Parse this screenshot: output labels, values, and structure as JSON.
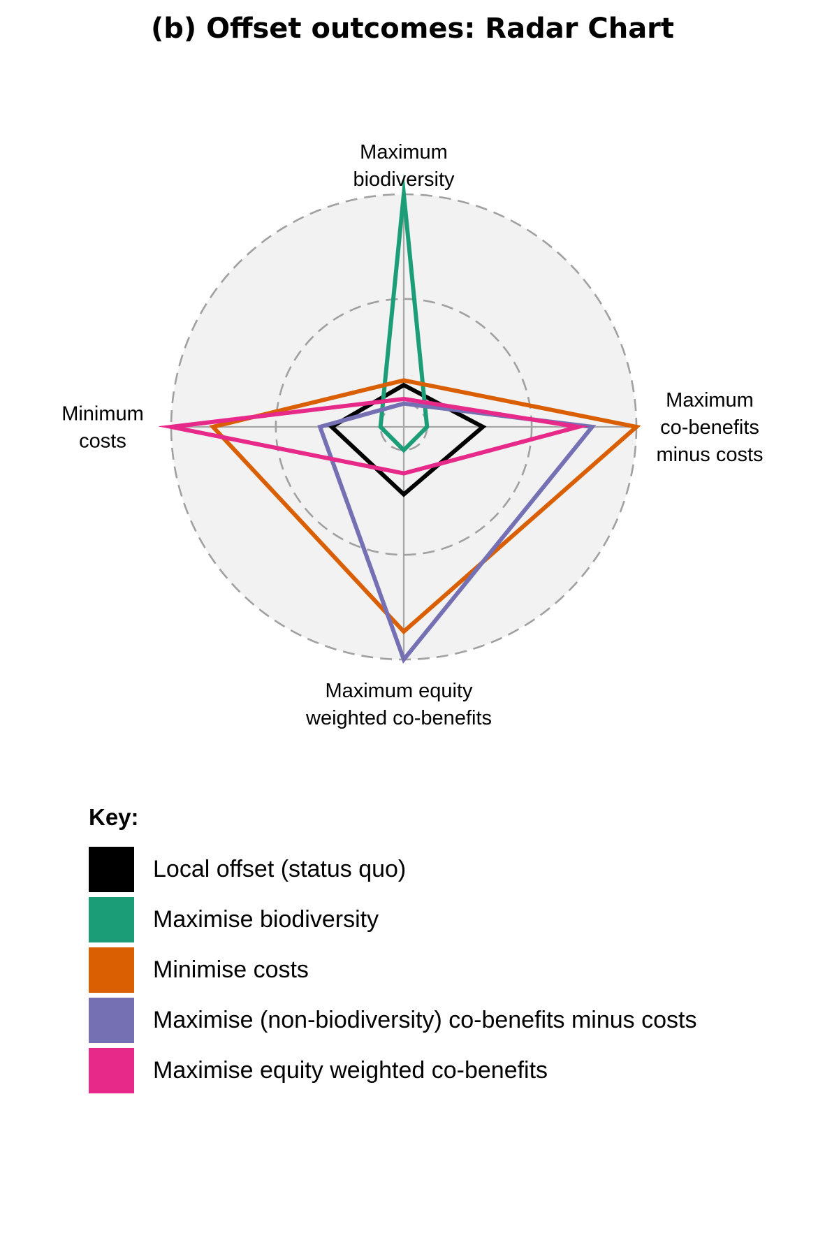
{
  "chart_data": {
    "type": "radar",
    "title": "(b) Offset outcomes: Radar Chart",
    "axes": [
      {
        "lines": [
          "Maximum",
          "biodiversity"
        ]
      },
      {
        "lines": [
          "Maximum",
          "co-benefits",
          "minus costs"
        ]
      },
      {
        "lines": [
          "Maximum equity",
          "weighted co-benefits"
        ]
      },
      {
        "lines": [
          "Minimum",
          "costs"
        ]
      }
    ],
    "rlim": [
      0,
      1
    ],
    "rings": [
      0.1,
      0.55,
      1.0
    ],
    "series": [
      {
        "name": "Local offset (status quo)",
        "color": "#000000",
        "values": [
          0.18,
          0.34,
          0.29,
          0.31
        ]
      },
      {
        "name": "Maximise biodiversity",
        "color": "#1b9e77",
        "values": [
          1.0,
          0.1,
          0.1,
          0.1
        ]
      },
      {
        "name": "Minimise costs",
        "color": "#d95f02",
        "values": [
          0.2,
          1.0,
          0.88,
          0.82
        ]
      },
      {
        "name": "Maximise (non-biodiversity) co-benefits minus costs",
        "color": "#7570b3",
        "values": [
          0.1,
          0.81,
          1.0,
          0.36
        ]
      },
      {
        "name": "Maximise equity weighted co-benefits",
        "color": "#e7298a",
        "values": [
          0.12,
          0.75,
          0.2,
          1.0
        ]
      }
    ],
    "grid": true,
    "legend": {
      "title": "Key:",
      "placement": "bottom"
    }
  }
}
